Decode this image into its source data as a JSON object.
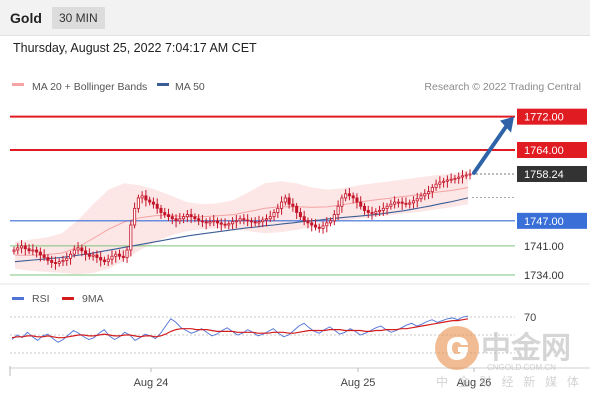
{
  "header": {
    "asset": "Gold",
    "timeframe": "30 MIN",
    "timestamp": "Thursday, August 25, 2022 7:04:17 AM CET"
  },
  "legend": {
    "bollinger": "MA 20 + Bollinger Bands",
    "ma50": "MA 50",
    "copyright": "Research © 2022 Trading Central"
  },
  "rsi_legend": {
    "rsi": "RSI",
    "ma9": "9MA"
  },
  "colors": {
    "resistance": "#e11b22",
    "pivot": "#3a6fd8",
    "support": "#7cc47c",
    "current": "#333333",
    "bollinger": "#f5a3a3",
    "ma50": "#3c5e96",
    "candle": "#c4152a",
    "arrow": "#2f63a8"
  },
  "watermark": {
    "cn_title": "中金网",
    "domain": "CNGOLD.COM.CN",
    "tagline": "中 金 财 经 新 媒 体"
  },
  "chart_data": [
    {
      "type": "candlestick",
      "ylim": [
        1728,
        1776
      ],
      "x_ticks": [
        "Aug 24",
        "Aug 25",
        "Aug 26"
      ],
      "levels": [
        {
          "label": "1772.00",
          "value": 1772.0,
          "kind": "resistance"
        },
        {
          "label": "1764.00",
          "value": 1764.0,
          "kind": "resistance"
        },
        {
          "label": "1758.24",
          "value": 1758.24,
          "kind": "current"
        },
        {
          "label": "1747.00",
          "value": 1747.0,
          "kind": "pivot"
        },
        {
          "label": "1741.00",
          "value": 1741.0,
          "kind": "support"
        },
        {
          "label": "1734.00",
          "value": 1734.0,
          "kind": "support"
        }
      ],
      "close": [
        1740,
        1740.5,
        1741,
        1740.3,
        1739.8,
        1740,
        1739.5,
        1738.8,
        1738.2,
        1737.5,
        1737,
        1736.8,
        1737.2,
        1737.5,
        1738,
        1739,
        1740,
        1740.5,
        1739.8,
        1739,
        1738.5,
        1738.8,
        1738.2,
        1737.6,
        1737.2,
        1737.8,
        1738.5,
        1739,
        1738.5,
        1738.2,
        1740,
        1746,
        1750,
        1752.5,
        1753,
        1752,
        1751.5,
        1751,
        1750,
        1749,
        1748.5,
        1748,
        1747.5,
        1747,
        1747.5,
        1748,
        1748.5,
        1748,
        1747.5,
        1747,
        1746.8,
        1746.5,
        1746.8,
        1747,
        1746.5,
        1746.2,
        1746,
        1746.3,
        1746.8,
        1747,
        1747.5,
        1747.2,
        1747,
        1746.8,
        1746.5,
        1746.8,
        1747.2,
        1747.5,
        1748,
        1749,
        1750,
        1751.5,
        1752.5,
        1751,
        1750.5,
        1749,
        1748,
        1747,
        1746.5,
        1746,
        1745.5,
        1745.2,
        1745.8,
        1746.5,
        1747,
        1748.5,
        1750.5,
        1752.5,
        1753.5,
        1753,
        1752.5,
        1751.5,
        1750.5,
        1749.5,
        1749,
        1748.8,
        1749.2,
        1749.5,
        1750,
        1750.5,
        1751,
        1751.5,
        1751.5,
        1751.2,
        1751,
        1751.3,
        1751.8,
        1752.3,
        1753,
        1753.5,
        1754,
        1755,
        1755.8,
        1756.3,
        1756.5,
        1756.8,
        1757,
        1757.2,
        1757.5,
        1757.8,
        1758,
        1758.24
      ],
      "ma50": [
        1737.2,
        1737.4,
        1737.6,
        1737.8,
        1738,
        1738.2,
        1738.5,
        1738.8,
        1739.1,
        1739.5,
        1739.9,
        1740.3,
        1740.7,
        1741.1,
        1741.5,
        1741.9,
        1742.3,
        1742.7,
        1743.1,
        1743.5,
        1743.8,
        1744.1,
        1744.4,
        1744.7,
        1745,
        1745.3,
        1745.5,
        1745.8,
        1746,
        1746.3,
        1746.5,
        1746.8,
        1747,
        1747.2,
        1747.5,
        1747.7,
        1747.9,
        1748.1,
        1748.3,
        1748.5,
        1748.8,
        1749.1,
        1749.4,
        1749.8,
        1750.2,
        1750.6,
        1751.1,
        1751.5,
        1752,
        1752.5
      ],
      "boll_upper": [
        1742,
        1742.5,
        1743,
        1744,
        1747,
        1751,
        1754.5,
        1756,
        1755.5,
        1754.5,
        1753,
        1751.5,
        1751,
        1751.2,
        1752,
        1754,
        1756,
        1756.5,
        1756,
        1755,
        1754.5,
        1754.8,
        1755.5,
        1756,
        1756.5,
        1757,
        1757.5,
        1758,
        1758.3,
        1759
      ],
      "boll_lower": [
        1735.5,
        1735,
        1734.8,
        1734.5,
        1734.2,
        1734.5,
        1735.5,
        1737.5,
        1740,
        1742,
        1743.5,
        1744.5,
        1745,
        1745.2,
        1745,
        1744.5,
        1744,
        1744.3,
        1744.8,
        1745.5,
        1746.2,
        1747,
        1747.5,
        1748,
        1748.3,
        1748.8,
        1749.2,
        1749.8,
        1750.3,
        1751
      ],
      "projection": {
        "from": 1758.5,
        "to": 1772
      }
    },
    {
      "type": "line",
      "title": "RSI",
      "reference_lines": [
        70,
        50,
        30
      ],
      "ylim": [
        20,
        80
      ],
      "series": [
        {
          "name": "RSI",
          "values": [
            45,
            50,
            47,
            53,
            48,
            44,
            49,
            51,
            46,
            42,
            45,
            50,
            55,
            52,
            48,
            45,
            47,
            52,
            56,
            49,
            45,
            48,
            53,
            50,
            44,
            47,
            51,
            49,
            46,
            52,
            60,
            68,
            64,
            58,
            55,
            52,
            54,
            57,
            53,
            49,
            51,
            55,
            58,
            54,
            50,
            52,
            56,
            53,
            49,
            51,
            54,
            57,
            52,
            48,
            50,
            55,
            60,
            63,
            58,
            54,
            52,
            56,
            59,
            55,
            51,
            53,
            57,
            54,
            50,
            52,
            55,
            58,
            60,
            56,
            53,
            55,
            58,
            61,
            63,
            60,
            62,
            65,
            67,
            64,
            66,
            68,
            69,
            67,
            70,
            71
          ]
        },
        {
          "name": "9MA",
          "values": [
            47,
            48,
            48,
            49,
            49,
            48,
            48,
            49,
            48,
            47,
            47,
            48,
            49,
            50,
            50,
            49,
            49,
            50,
            51,
            50,
            49,
            49,
            50,
            50,
            49,
            48,
            49,
            49,
            48,
            49,
            51,
            54,
            56,
            57,
            57,
            57,
            56,
            56,
            56,
            55,
            54,
            54,
            54,
            54,
            53,
            53,
            53,
            53,
            52,
            52,
            52,
            53,
            53,
            53,
            52,
            52,
            53,
            54,
            55,
            55,
            55,
            55,
            56,
            56,
            56,
            55,
            55,
            55,
            55,
            54,
            54,
            55,
            55,
            56,
            56,
            56,
            57,
            57,
            58,
            59,
            60,
            61,
            62,
            63,
            64,
            65,
            66,
            66,
            67,
            68
          ]
        }
      ]
    }
  ]
}
